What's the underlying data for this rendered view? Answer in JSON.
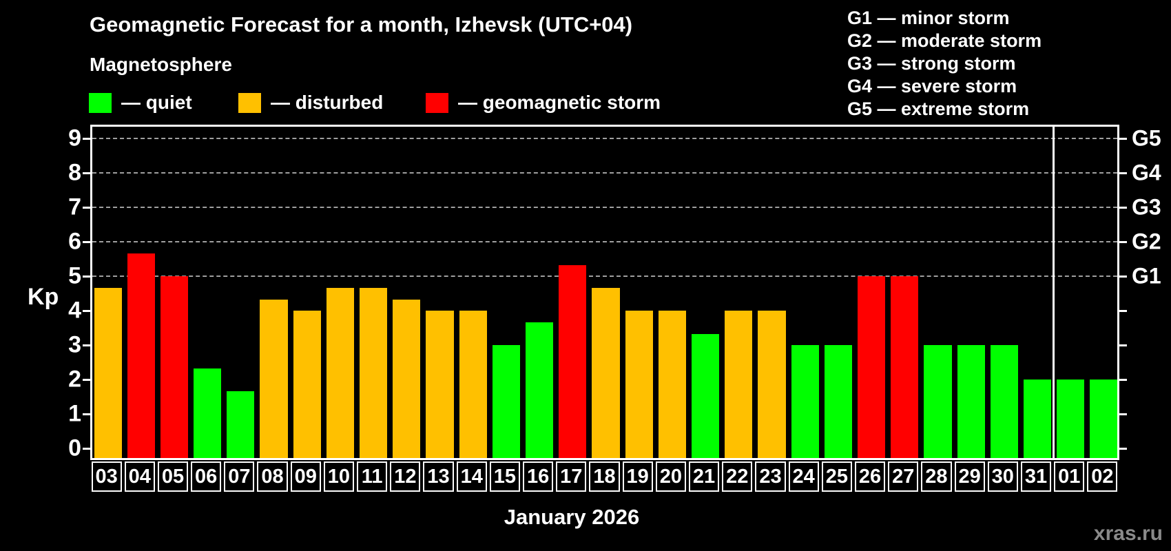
{
  "title": "Geomagnetic Forecast for a month, Izhevsk (UTC+04)",
  "subtitle": "Magnetosphere",
  "legend": [
    {
      "key": "quiet",
      "label": "— quiet",
      "color": "#00ff00"
    },
    {
      "key": "disturbed",
      "label": "— disturbed",
      "color": "#ffc000"
    },
    {
      "key": "storm",
      "label": "— geomagnetic storm",
      "color": "#ff0000"
    }
  ],
  "g_scale_legend": [
    "G1 — minor storm",
    "G2 — moderate storm",
    "G3 — strong storm",
    "G4 — severe storm",
    "G5 — extreme storm"
  ],
  "watermark": "xras.ru",
  "colors": {
    "quiet": "#00ff00",
    "disturbed": "#ffc000",
    "storm": "#ff0000",
    "gridline": "#a0a0a0",
    "axis": "#ffffff",
    "background": "#000000"
  },
  "chart_data": {
    "type": "bar",
    "title": "Geomagnetic Forecast for a month, Izhevsk (UTC+04)",
    "xlabel": "January 2026",
    "ylabel": "Kp",
    "ylim": [
      0,
      9
    ],
    "yticks": [
      0,
      1,
      2,
      3,
      4,
      5,
      6,
      7,
      8,
      9
    ],
    "gridlines_at": [
      5,
      6,
      7,
      8,
      9
    ],
    "grid": "dashed, only at storm levels G1–G5",
    "right_axis_labels": {
      "5": "G1",
      "6": "G2",
      "7": "G3",
      "8": "G4",
      "9": "G5"
    },
    "legend_position": "top",
    "month_separator_after_index": 28,
    "categories": [
      "03",
      "04",
      "05",
      "06",
      "07",
      "08",
      "09",
      "10",
      "11",
      "12",
      "13",
      "14",
      "15",
      "16",
      "17",
      "18",
      "19",
      "20",
      "21",
      "22",
      "23",
      "24",
      "25",
      "26",
      "27",
      "28",
      "29",
      "30",
      "31",
      "01",
      "02"
    ],
    "values": [
      4.67,
      5.67,
      5.0,
      2.33,
      1.67,
      4.33,
      4.0,
      4.67,
      4.67,
      4.33,
      4.0,
      4.0,
      3.0,
      3.67,
      5.33,
      4.67,
      4.0,
      4.0,
      3.33,
      4.0,
      4.0,
      3.0,
      3.0,
      5.0,
      5.0,
      3.0,
      3.0,
      3.0,
      2.0,
      2.0,
      2.0
    ],
    "status": [
      "disturbed",
      "storm",
      "storm",
      "quiet",
      "quiet",
      "disturbed",
      "disturbed",
      "disturbed",
      "disturbed",
      "disturbed",
      "disturbed",
      "disturbed",
      "quiet",
      "quiet",
      "storm",
      "disturbed",
      "disturbed",
      "disturbed",
      "quiet",
      "disturbed",
      "disturbed",
      "quiet",
      "quiet",
      "storm",
      "storm",
      "quiet",
      "quiet",
      "quiet",
      "quiet",
      "quiet",
      "quiet"
    ]
  }
}
